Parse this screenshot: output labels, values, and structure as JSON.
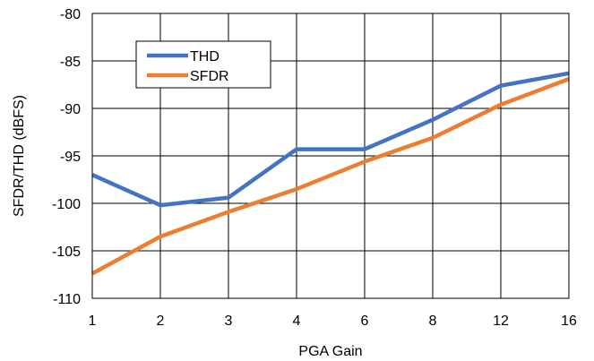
{
  "chart_data": {
    "type": "line",
    "title": "",
    "xlabel": "PGA Gain",
    "ylabel": "SFDR/THD (dBFS)",
    "categories": [
      "1",
      "2",
      "3",
      "4",
      "6",
      "8",
      "12",
      "16"
    ],
    "ylim": [
      -110,
      -80
    ],
    "yticks": [
      -80,
      -85,
      -90,
      -95,
      -100,
      -105,
      -110
    ],
    "grid": true,
    "legend_position": "top-left",
    "series": [
      {
        "name": "THD",
        "color": "#4472C4",
        "values": [
          -97.0,
          -100.2,
          -99.4,
          -94.3,
          -94.3,
          -91.2,
          -87.6,
          -86.3
        ]
      },
      {
        "name": "SFDR",
        "color": "#ED7D31",
        "values": [
          -107.4,
          -103.5,
          -100.9,
          -98.5,
          -95.6,
          -93.1,
          -89.6,
          -86.9
        ]
      }
    ]
  }
}
